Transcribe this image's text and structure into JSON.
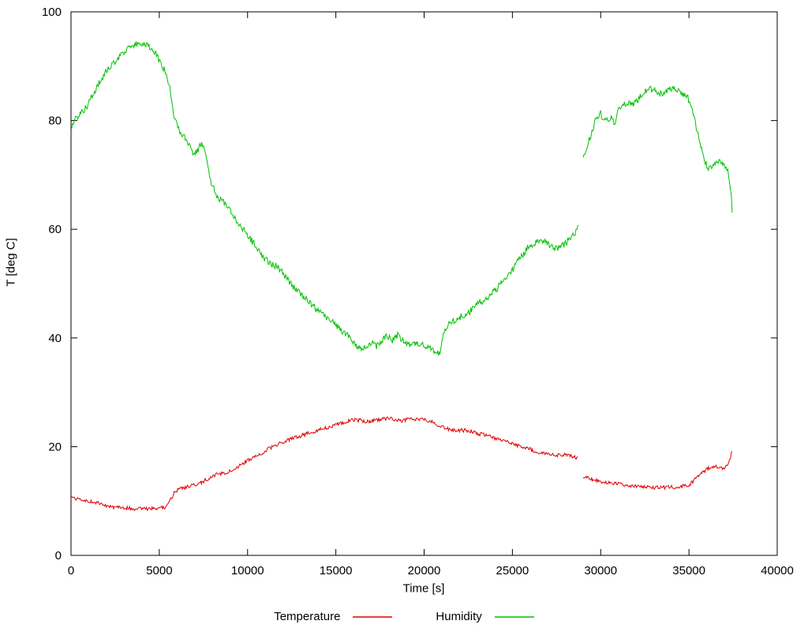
{
  "page": {
    "background": "#ffffff"
  },
  "chart_data": {
    "type": "line",
    "title": "",
    "xlabel": "Time [s]",
    "ylabel": "T [deg C]",
    "xlim": [
      0,
      40000
    ],
    "ylim": [
      0,
      100
    ],
    "xticks": [
      0,
      5000,
      10000,
      15000,
      20000,
      25000,
      30000,
      35000,
      40000
    ],
    "yticks": [
      0,
      20,
      40,
      60,
      80,
      100
    ],
    "grid": false,
    "legend_position": "bottom-center",
    "series": [
      {
        "name": "Temperature",
        "color": "#dd0000",
        "noise": 0.35,
        "segments": [
          [
            [
              0,
              10.5
            ],
            [
              500,
              10.3
            ],
            [
              1000,
              10.0
            ],
            [
              1500,
              9.6
            ],
            [
              2000,
              9.0
            ],
            [
              2500,
              8.8
            ],
            [
              3000,
              8.7
            ],
            [
              3500,
              8.6
            ],
            [
              4000,
              8.6
            ],
            [
              4500,
              8.6
            ],
            [
              5000,
              8.7
            ],
            [
              5400,
              8.9
            ],
            [
              5600,
              10.0
            ],
            [
              5800,
              11.3
            ],
            [
              6000,
              12.0
            ],
            [
              6300,
              12.4
            ],
            [
              6600,
              12.6
            ],
            [
              7000,
              13.0
            ],
            [
              7300,
              13.2
            ],
            [
              7600,
              13.8
            ],
            [
              8000,
              14.6
            ],
            [
              8400,
              15.0
            ],
            [
              8800,
              15.2
            ],
            [
              9200,
              15.8
            ],
            [
              9600,
              16.6
            ],
            [
              10000,
              17.4
            ],
            [
              10400,
              18.2
            ],
            [
              10800,
              18.8
            ],
            [
              11200,
              19.6
            ],
            [
              11600,
              20.2
            ],
            [
              12000,
              20.8
            ],
            [
              12400,
              21.3
            ],
            [
              12800,
              21.8
            ],
            [
              13200,
              22.2
            ],
            [
              13600,
              22.6
            ],
            [
              14000,
              23.0
            ],
            [
              14400,
              23.4
            ],
            [
              14800,
              23.8
            ],
            [
              15200,
              24.2
            ],
            [
              15600,
              24.6
            ],
            [
              16000,
              25.0
            ],
            [
              16400,
              24.8
            ],
            [
              16800,
              24.6
            ],
            [
              17200,
              24.8
            ],
            [
              17600,
              25.0
            ],
            [
              18000,
              25.2
            ],
            [
              18400,
              25.0
            ],
            [
              18800,
              24.8
            ],
            [
              19200,
              25.2
            ],
            [
              19600,
              25.0
            ],
            [
              20000,
              25.0
            ],
            [
              20400,
              24.6
            ],
            [
              20800,
              24.0
            ],
            [
              21200,
              23.4
            ],
            [
              21600,
              23.0
            ],
            [
              22000,
              23.0
            ],
            [
              22400,
              23.0
            ],
            [
              22800,
              22.7
            ],
            [
              23200,
              22.3
            ],
            [
              23600,
              22.0
            ],
            [
              24000,
              21.6
            ],
            [
              24400,
              21.2
            ],
            [
              24800,
              20.8
            ],
            [
              25200,
              20.3
            ],
            [
              25600,
              19.9
            ],
            [
              26000,
              19.5
            ],
            [
              26400,
              19.0
            ],
            [
              26800,
              18.7
            ],
            [
              27200,
              18.5
            ],
            [
              27600,
              18.5
            ],
            [
              28000,
              18.6
            ],
            [
              28400,
              18.2
            ],
            [
              28700,
              17.9
            ]
          ],
          [
            [
              29000,
              14.6
            ],
            [
              29400,
              14.1
            ],
            [
              29800,
              13.7
            ],
            [
              30200,
              13.4
            ],
            [
              30600,
              13.3
            ],
            [
              31000,
              13.2
            ],
            [
              31400,
              13.0
            ],
            [
              31800,
              12.8
            ],
            [
              32200,
              12.6
            ],
            [
              32600,
              12.5
            ],
            [
              33000,
              12.5
            ],
            [
              33400,
              12.5
            ],
            [
              33800,
              12.5
            ],
            [
              34200,
              12.6
            ],
            [
              34600,
              12.7
            ],
            [
              35000,
              13.0
            ],
            [
              35300,
              13.8
            ],
            [
              35600,
              14.8
            ],
            [
              35900,
              15.6
            ],
            [
              36200,
              16.2
            ],
            [
              36500,
              16.3
            ],
            [
              36800,
              16.0
            ],
            [
              37000,
              16.2
            ],
            [
              37200,
              16.6
            ],
            [
              37350,
              18.0
            ],
            [
              37450,
              19.2
            ]
          ]
        ]
      },
      {
        "name": "Humidity",
        "color": "#00c000",
        "noise": 0.6,
        "segments": [
          [
            [
              0,
              78.5
            ],
            [
              300,
              80.5
            ],
            [
              600,
              81.5
            ],
            [
              900,
              82.5
            ],
            [
              1200,
              84.5
            ],
            [
              1500,
              86.5
            ],
            [
              1800,
              88.0
            ],
            [
              2100,
              89.5
            ],
            [
              2400,
              90.5
            ],
            [
              2700,
              91.5
            ],
            [
              3000,
              92.5
            ],
            [
              3300,
              93.5
            ],
            [
              3600,
              94.0
            ],
            [
              3900,
              94.4
            ],
            [
              4200,
              94.2
            ],
            [
              4500,
              93.5
            ],
            [
              4800,
              92.3
            ],
            [
              5100,
              90.5
            ],
            [
              5400,
              88.5
            ],
            [
              5600,
              86.0
            ],
            [
              5800,
              81.5
            ],
            [
              6000,
              79.0
            ],
            [
              6300,
              77.5
            ],
            [
              6600,
              76.0
            ],
            [
              6900,
              74.0
            ],
            [
              7200,
              74.5
            ],
            [
              7400,
              76.0
            ],
            [
              7600,
              74.0
            ],
            [
              7800,
              70.5
            ],
            [
              8000,
              68.0
            ],
            [
              8300,
              66.0
            ],
            [
              8600,
              65.0
            ],
            [
              8900,
              64.0
            ],
            [
              9200,
              62.5
            ],
            [
              9500,
              61.0
            ],
            [
              9800,
              59.8
            ],
            [
              10100,
              58.5
            ],
            [
              10400,
              57.2
            ],
            [
              10700,
              55.8
            ],
            [
              11000,
              54.5
            ],
            [
              11300,
              53.8
            ],
            [
              11600,
              53.2
            ],
            [
              11900,
              52.3
            ],
            [
              12200,
              51.0
            ],
            [
              12500,
              49.8
            ],
            [
              12800,
              48.8
            ],
            [
              13100,
              47.8
            ],
            [
              13400,
              47.0
            ],
            [
              13700,
              46.0
            ],
            [
              14000,
              45.0
            ],
            [
              14300,
              44.2
            ],
            [
              14600,
              43.6
            ],
            [
              14900,
              42.8
            ],
            [
              15200,
              41.8
            ],
            [
              15500,
              40.8
            ],
            [
              15800,
              40.2
            ],
            [
              16100,
              38.8
            ],
            [
              16400,
              37.8
            ],
            [
              16700,
              38.5
            ],
            [
              17000,
              39.2
            ],
            [
              17300,
              38.5
            ],
            [
              17600,
              39.5
            ],
            [
              17900,
              40.3
            ],
            [
              18200,
              39.6
            ],
            [
              18500,
              40.6
            ],
            [
              18800,
              39.4
            ],
            [
              19100,
              38.6
            ],
            [
              19400,
              39.2
            ],
            [
              19700,
              38.8
            ],
            [
              20000,
              38.6
            ],
            [
              20300,
              38.2
            ],
            [
              20600,
              37.4
            ],
            [
              20900,
              37.0
            ],
            [
              21100,
              41.0
            ],
            [
              21400,
              42.6
            ],
            [
              21700,
              43.2
            ],
            [
              22000,
              43.8
            ],
            [
              22300,
              44.3
            ],
            [
              22600,
              44.9
            ],
            [
              22900,
              45.8
            ],
            [
              23200,
              46.6
            ],
            [
              23500,
              47.2
            ],
            [
              23800,
              48.2
            ],
            [
              24100,
              49.0
            ],
            [
              24400,
              50.2
            ],
            [
              24700,
              51.2
            ],
            [
              25000,
              52.4
            ],
            [
              25300,
              54.0
            ],
            [
              25600,
              55.4
            ],
            [
              25900,
              56.8
            ],
            [
              26200,
              57.4
            ],
            [
              26500,
              57.8
            ],
            [
              26800,
              58.0
            ],
            [
              27100,
              57.2
            ],
            [
              27400,
              56.4
            ],
            [
              27700,
              56.8
            ],
            [
              28000,
              57.4
            ],
            [
              28300,
              58.4
            ],
            [
              28600,
              59.6
            ],
            [
              28750,
              60.6
            ]
          ],
          [
            [
              29000,
              73.0
            ],
            [
              29200,
              75.0
            ],
            [
              29400,
              77.0
            ],
            [
              29600,
              79.0
            ],
            [
              29800,
              80.8
            ],
            [
              30000,
              81.2
            ],
            [
              30200,
              79.8
            ],
            [
              30400,
              80.2
            ],
            [
              30600,
              80.6
            ],
            [
              30800,
              79.6
            ],
            [
              31000,
              82.0
            ],
            [
              31300,
              83.0
            ],
            [
              31600,
              83.4
            ],
            [
              31900,
              83.0
            ],
            [
              32200,
              84.2
            ],
            [
              32500,
              85.4
            ],
            [
              32800,
              86.0
            ],
            [
              33100,
              85.4
            ],
            [
              33400,
              85.0
            ],
            [
              33700,
              85.4
            ],
            [
              34000,
              86.0
            ],
            [
              34300,
              85.6
            ],
            [
              34600,
              85.0
            ],
            [
              34900,
              84.6
            ],
            [
              35200,
              82.0
            ],
            [
              35500,
              77.5
            ],
            [
              35800,
              73.5
            ],
            [
              36100,
              71.0
            ],
            [
              36400,
              71.5
            ],
            [
              36700,
              72.8
            ],
            [
              37000,
              72.0
            ],
            [
              37200,
              71.0
            ],
            [
              37400,
              66.0
            ],
            [
              37450,
              62.5
            ]
          ]
        ]
      }
    ]
  }
}
